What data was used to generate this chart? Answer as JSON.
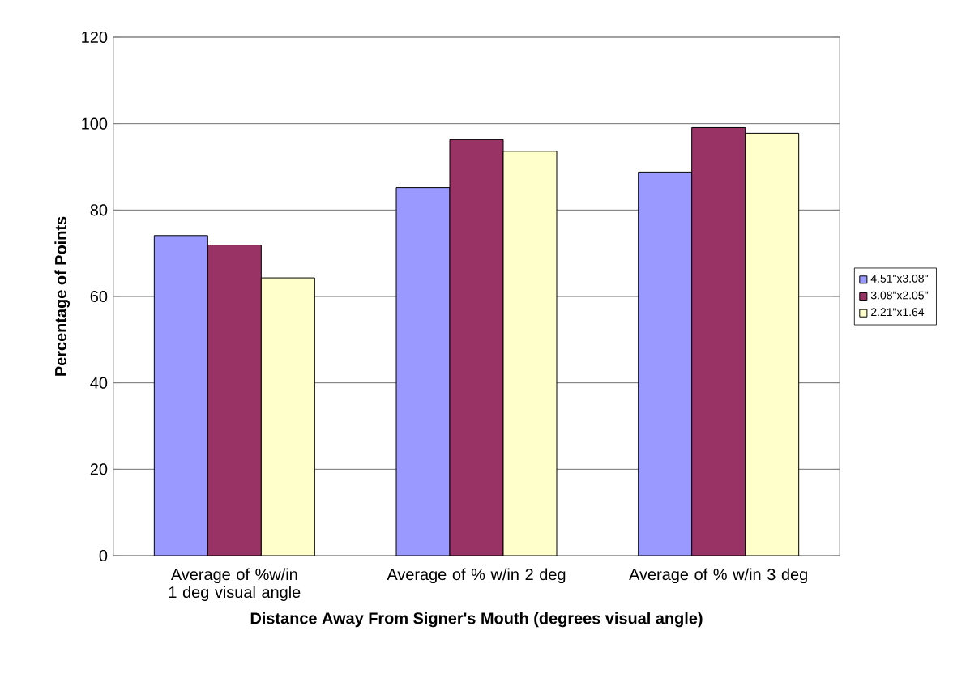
{
  "chart_data": {
    "type": "bar",
    "xlabel": "Distance Away From Signer's Mouth (degrees visual angle)",
    "ylabel": "Percentage of Points",
    "categories": [
      "Average of %w/in 1 deg visual angle",
      "Average of % w/in 2 deg",
      "Average of % w/in 3 deg"
    ],
    "series": [
      {
        "name": "4.51\"x3.08\"",
        "color": "#9999ff",
        "values": [
          74.1,
          85.2,
          88.8
        ]
      },
      {
        "name": "3.08\"x2.05\"",
        "color": "#993366",
        "values": [
          71.9,
          96.3,
          99.1
        ]
      },
      {
        "name": "2.21\"x1.64",
        "color": "#ffffcc",
        "values": [
          64.3,
          93.6,
          97.8
        ]
      }
    ],
    "ylim": [
      0,
      120
    ],
    "yticks": [
      0,
      20,
      40,
      60,
      80,
      100,
      120
    ],
    "grid": "y",
    "legend": "right"
  }
}
